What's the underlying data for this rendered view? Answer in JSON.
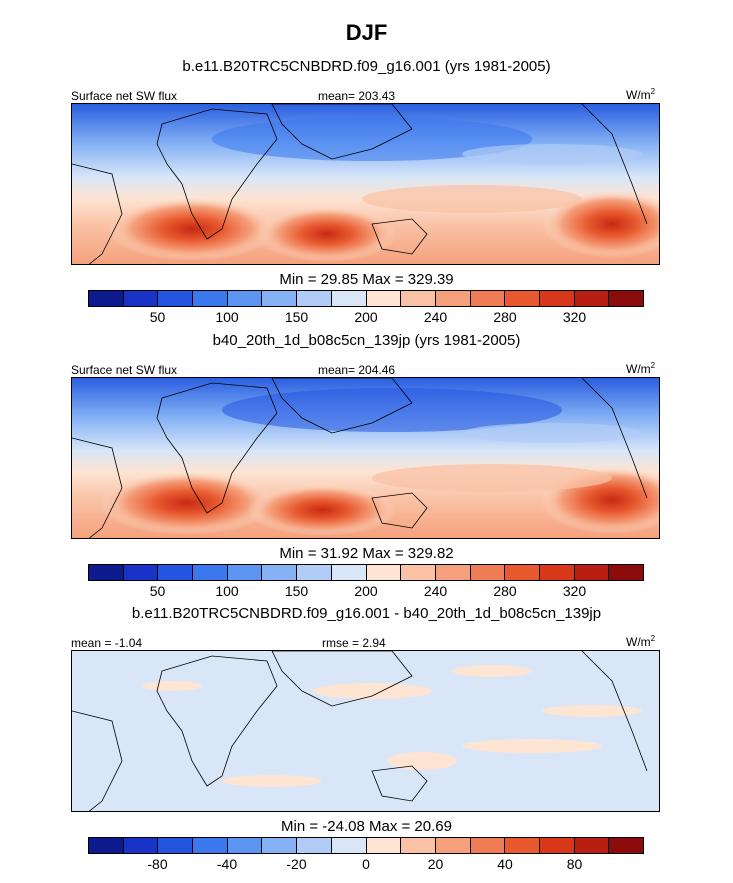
{
  "title": "DJF",
  "chart_data": [
    {
      "type": "heatmap",
      "subtitle": "b.e11.B20TRC5CNBDRD.f09_g16.001 (yrs 1981-2005)",
      "left_label": "Surface net SW flux",
      "center_label": "mean= 203.43",
      "units_base": "W/m",
      "units_exp": "2",
      "min_max": "Min =  29.85 Max = 329.39",
      "colorbar_ticks": [
        "50",
        "100",
        "150",
        "200",
        "240",
        "280",
        "320"
      ],
      "colorbar_colors": [
        "#0d1b8e",
        "#1932c8",
        "#2455e0",
        "#3b78ee",
        "#5c95f2",
        "#86b2f5",
        "#b1ccf7",
        "#d8e6f8",
        "#fde4d3",
        "#f9c2a5",
        "#f5a07c",
        "#f07c55",
        "#e8592f",
        "#d8381a",
        "#b81e12",
        "#8c0c0c"
      ]
    },
    {
      "type": "heatmap",
      "subtitle": "b40_20th_1d_b08c5cn_139jp (yrs 1981-2005)",
      "left_label": "Surface net SW flux",
      "center_label": "mean= 204.46",
      "units_base": "W/m",
      "units_exp": "2",
      "min_max": "Min =  31.92 Max = 329.82",
      "colorbar_ticks": [
        "50",
        "100",
        "150",
        "200",
        "240",
        "280",
        "320"
      ],
      "colorbar_colors": [
        "#0d1b8e",
        "#1932c8",
        "#2455e0",
        "#3b78ee",
        "#5c95f2",
        "#86b2f5",
        "#b1ccf7",
        "#d8e6f8",
        "#fde4d3",
        "#f9c2a5",
        "#f5a07c",
        "#f07c55",
        "#e8592f",
        "#d8381a",
        "#b81e12",
        "#8c0c0c"
      ]
    },
    {
      "type": "heatmap",
      "subtitle": "b.e11.B20TRC5CNBDRD.f09_g16.001 - b40_20th_1d_b08c5cn_139jp",
      "left_label": "mean =  -1.04",
      "center_label": "rmse =   2.94",
      "units_base": "W/m",
      "units_exp": "2",
      "min_max": "Min = -24.08 Max =  20.69",
      "colorbar_ticks": [
        "-80",
        "-40",
        "-20",
        "0",
        "20",
        "40",
        "80"
      ],
      "colorbar_colors": [
        "#0d1b8e",
        "#1932c8",
        "#2455e0",
        "#3b78ee",
        "#5c95f2",
        "#86b2f5",
        "#b1ccf7",
        "#d8e6f8",
        "#fde4d3",
        "#f9c2a5",
        "#f5a07c",
        "#f07c55",
        "#e8592f",
        "#d8381a",
        "#b81e12",
        "#8c0c0c"
      ]
    }
  ]
}
